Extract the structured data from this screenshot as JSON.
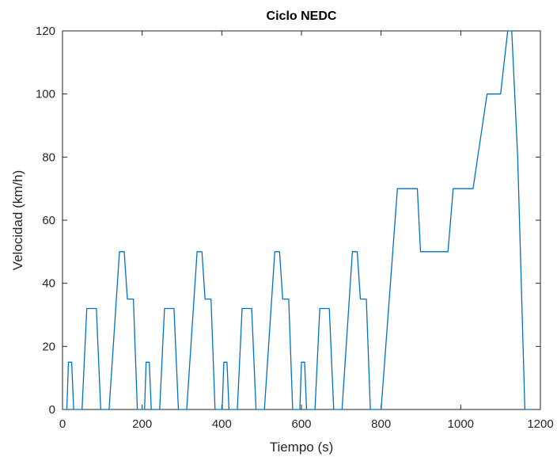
{
  "chart_data": {
    "type": "line",
    "title": "Ciclo NEDC",
    "xlabel": "Tiempo (s)",
    "ylabel": "Velocidad (km/h)",
    "xlim": [
      0,
      1200
    ],
    "ylim": [
      0,
      120
    ],
    "xticks": [
      0,
      200,
      400,
      600,
      800,
      1000,
      1200
    ],
    "yticks": [
      0,
      20,
      40,
      60,
      80,
      100,
      120
    ],
    "grid": false,
    "colors": {
      "line": "#0072BD",
      "axis": "#262626"
    },
    "series": [
      {
        "x": [
          0,
          11,
          15,
          23,
          28,
          49,
          61,
          85,
          96,
          117,
          143,
          155,
          163,
          176,
          178,
          188,
          195,
          206,
          210,
          218,
          223,
          244,
          256,
          280,
          291,
          312,
          338,
          350,
          358,
          371,
          373,
          383,
          390,
          401,
          405,
          413,
          418,
          439,
          451,
          475,
          486,
          507,
          533,
          545,
          553,
          566,
          568,
          578,
          585,
          596,
          600,
          608,
          613,
          634,
          646,
          670,
          681,
          702,
          728,
          740,
          748,
          761,
          763,
          773,
          780,
          800,
          841,
          891,
          899,
          968,
          981,
          1031,
          1066,
          1100,
          1118,
          1128,
          1143,
          1161,
          1180
        ],
        "y": [
          0,
          0,
          15,
          15,
          0,
          0,
          32,
          32,
          0,
          0,
          50,
          50,
          35,
          35,
          35,
          0,
          0,
          0,
          15,
          15,
          0,
          0,
          32,
          32,
          0,
          0,
          50,
          50,
          35,
          35,
          35,
          0,
          0,
          0,
          15,
          15,
          0,
          0,
          32,
          32,
          0,
          0,
          50,
          50,
          35,
          35,
          35,
          0,
          0,
          0,
          15,
          15,
          0,
          0,
          32,
          32,
          0,
          0,
          50,
          50,
          35,
          35,
          35,
          0,
          0,
          0,
          70,
          70,
          50,
          50,
          70,
          70,
          100,
          100,
          120,
          120,
          80,
          0,
          0
        ]
      }
    ]
  }
}
